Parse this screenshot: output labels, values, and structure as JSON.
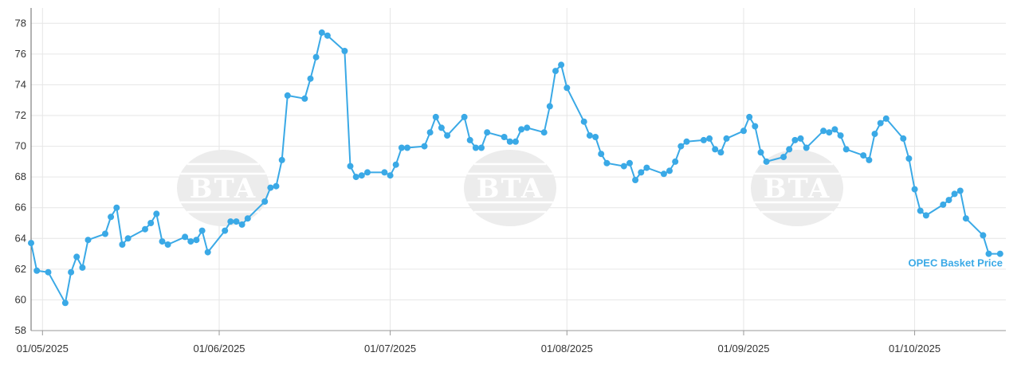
{
  "chart_data": {
    "type": "line",
    "title": "",
    "xlabel": "",
    "ylabel": "",
    "ylim": [
      58,
      79
    ],
    "y_ticks": [
      58,
      60,
      62,
      64,
      66,
      68,
      70,
      72,
      74,
      76,
      78
    ],
    "x_ticks": [
      {
        "date": "2025-05-01",
        "label": "01/05/2025"
      },
      {
        "date": "2025-06-01",
        "label": "01/06/2025"
      },
      {
        "date": "2025-07-01",
        "label": "01/07/2025"
      },
      {
        "date": "2025-08-01",
        "label": "01/08/2025"
      },
      {
        "date": "2025-09-01",
        "label": "01/09/2025"
      },
      {
        "date": "2025-10-01",
        "label": "01/10/2025"
      }
    ],
    "xlim": [
      "2025-04-29",
      "2025-10-17"
    ],
    "grid": true,
    "legend": "none",
    "watermark": "BTA",
    "series": [
      {
        "name": "OPEC Basket Price",
        "color": "#3aa9e6",
        "points": [
          [
            "2025-04-29",
            63.7
          ],
          [
            "2025-04-30",
            61.9
          ],
          [
            "2025-05-02",
            61.8
          ],
          [
            "2025-05-05",
            59.8
          ],
          [
            "2025-05-06",
            61.8
          ],
          [
            "2025-05-07",
            62.8
          ],
          [
            "2025-05-08",
            62.1
          ],
          [
            "2025-05-09",
            63.9
          ],
          [
            "2025-05-12",
            64.3
          ],
          [
            "2025-05-13",
            65.4
          ],
          [
            "2025-05-14",
            66.0
          ],
          [
            "2025-05-15",
            63.6
          ],
          [
            "2025-05-16",
            64.0
          ],
          [
            "2025-05-19",
            64.6
          ],
          [
            "2025-05-20",
            65.0
          ],
          [
            "2025-05-21",
            65.6
          ],
          [
            "2025-05-22",
            63.8
          ],
          [
            "2025-05-23",
            63.6
          ],
          [
            "2025-05-26",
            64.1
          ],
          [
            "2025-05-27",
            63.8
          ],
          [
            "2025-05-28",
            63.9
          ],
          [
            "2025-05-29",
            64.5
          ],
          [
            "2025-05-30",
            63.1
          ],
          [
            "2025-06-02",
            64.5
          ],
          [
            "2025-06-03",
            65.1
          ],
          [
            "2025-06-04",
            65.1
          ],
          [
            "2025-06-05",
            64.9
          ],
          [
            "2025-06-06",
            65.3
          ],
          [
            "2025-06-09",
            66.4
          ],
          [
            "2025-06-10",
            67.3
          ],
          [
            "2025-06-11",
            67.4
          ],
          [
            "2025-06-12",
            69.1
          ],
          [
            "2025-06-13",
            73.3
          ],
          [
            "2025-06-16",
            73.1
          ],
          [
            "2025-06-17",
            74.4
          ],
          [
            "2025-06-18",
            75.8
          ],
          [
            "2025-06-19",
            77.4
          ],
          [
            "2025-06-20",
            77.2
          ],
          [
            "2025-06-23",
            76.2
          ],
          [
            "2025-06-24",
            68.7
          ],
          [
            "2025-06-25",
            68.0
          ],
          [
            "2025-06-26",
            68.1
          ],
          [
            "2025-06-27",
            68.3
          ],
          [
            "2025-06-30",
            68.3
          ],
          [
            "2025-07-01",
            68.1
          ],
          [
            "2025-07-02",
            68.8
          ],
          [
            "2025-07-03",
            69.9
          ],
          [
            "2025-07-04",
            69.9
          ],
          [
            "2025-07-07",
            70.0
          ],
          [
            "2025-07-08",
            70.9
          ],
          [
            "2025-07-09",
            71.9
          ],
          [
            "2025-07-10",
            71.2
          ],
          [
            "2025-07-11",
            70.7
          ],
          [
            "2025-07-14",
            71.9
          ],
          [
            "2025-07-15",
            70.4
          ],
          [
            "2025-07-16",
            69.9
          ],
          [
            "2025-07-17",
            69.9
          ],
          [
            "2025-07-18",
            70.9
          ],
          [
            "2025-07-21",
            70.6
          ],
          [
            "2025-07-22",
            70.3
          ],
          [
            "2025-07-23",
            70.3
          ],
          [
            "2025-07-24",
            71.1
          ],
          [
            "2025-07-25",
            71.2
          ],
          [
            "2025-07-28",
            70.9
          ],
          [
            "2025-07-29",
            72.6
          ],
          [
            "2025-07-30",
            74.9
          ],
          [
            "2025-07-31",
            75.3
          ],
          [
            "2025-08-01",
            73.8
          ],
          [
            "2025-08-04",
            71.6
          ],
          [
            "2025-08-05",
            70.7
          ],
          [
            "2025-08-06",
            70.6
          ],
          [
            "2025-08-07",
            69.5
          ],
          [
            "2025-08-08",
            68.9
          ],
          [
            "2025-08-11",
            68.7
          ],
          [
            "2025-08-12",
            68.9
          ],
          [
            "2025-08-13",
            67.8
          ],
          [
            "2025-08-14",
            68.3
          ],
          [
            "2025-08-15",
            68.6
          ],
          [
            "2025-08-18",
            68.2
          ],
          [
            "2025-08-19",
            68.4
          ],
          [
            "2025-08-20",
            69.0
          ],
          [
            "2025-08-21",
            70.0
          ],
          [
            "2025-08-22",
            70.3
          ],
          [
            "2025-08-25",
            70.4
          ],
          [
            "2025-08-26",
            70.5
          ],
          [
            "2025-08-27",
            69.8
          ],
          [
            "2025-08-28",
            69.6
          ],
          [
            "2025-08-29",
            70.5
          ],
          [
            "2025-09-01",
            71.0
          ],
          [
            "2025-09-02",
            71.9
          ],
          [
            "2025-09-03",
            71.3
          ],
          [
            "2025-09-04",
            69.6
          ],
          [
            "2025-09-05",
            69.0
          ],
          [
            "2025-09-08",
            69.3
          ],
          [
            "2025-09-09",
            69.8
          ],
          [
            "2025-09-10",
            70.4
          ],
          [
            "2025-09-11",
            70.5
          ],
          [
            "2025-09-12",
            69.9
          ],
          [
            "2025-09-15",
            71.0
          ],
          [
            "2025-09-16",
            70.9
          ],
          [
            "2025-09-17",
            71.1
          ],
          [
            "2025-09-18",
            70.7
          ],
          [
            "2025-09-19",
            69.8
          ],
          [
            "2025-09-22",
            69.4
          ],
          [
            "2025-09-23",
            69.1
          ],
          [
            "2025-09-24",
            70.8
          ],
          [
            "2025-09-25",
            71.5
          ],
          [
            "2025-09-26",
            71.8
          ],
          [
            "2025-09-29",
            70.5
          ],
          [
            "2025-09-30",
            69.2
          ],
          [
            "2025-10-01",
            67.2
          ],
          [
            "2025-10-02",
            65.8
          ],
          [
            "2025-10-03",
            65.5
          ],
          [
            "2025-10-06",
            66.2
          ],
          [
            "2025-10-07",
            66.5
          ],
          [
            "2025-10-08",
            66.9
          ],
          [
            "2025-10-09",
            67.1
          ],
          [
            "2025-10-10",
            65.3
          ],
          [
            "2025-10-13",
            64.2
          ],
          [
            "2025-10-14",
            63.0
          ],
          [
            "2025-10-16",
            63.0
          ]
        ]
      }
    ]
  }
}
